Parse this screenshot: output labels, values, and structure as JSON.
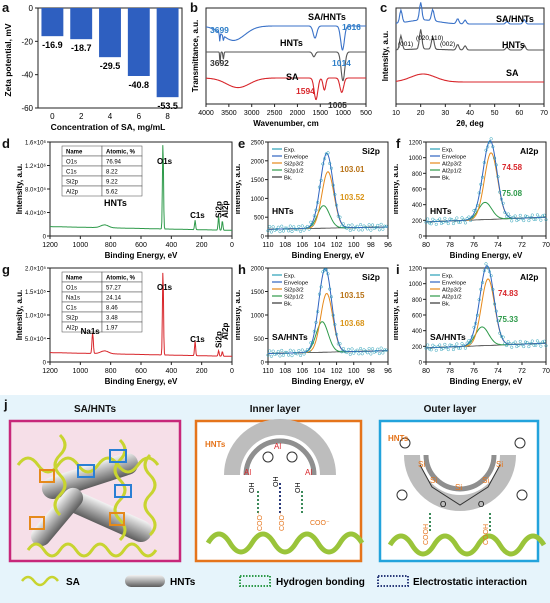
{
  "panel_letters": [
    "a",
    "b",
    "c",
    "d",
    "e",
    "f",
    "g",
    "h",
    "i",
    "j"
  ],
  "colors": {
    "blue": "#2f63c0",
    "red": "#d8262b",
    "green": "#2e9a4a",
    "gray": "#4d4d4d",
    "orange": "#e6891b",
    "magenta": "#d0307a",
    "cyan": "#17a0d6"
  },
  "chart_data": [
    {
      "id": "a",
      "type": "bar",
      "categories": [
        "0",
        "2",
        "4",
        "6",
        "8"
      ],
      "values": [
        -16.9,
        -18.7,
        -29.5,
        -40.8,
        -53.5
      ],
      "data_labels": [
        "-16.9",
        "-18.7",
        "-29.5",
        "-40.8",
        "-53.5"
      ],
      "xlabel": "Concentration of SA, mg/mL",
      "ylabel": "Zeta potential, mV",
      "ylim": [
        -60,
        0
      ],
      "yticks": [
        "0",
        "-20",
        "-40",
        "-60"
      ],
      "xticks": [
        "0",
        "2",
        "4",
        "6",
        "8"
      ],
      "color": "#2e5fc0"
    },
    {
      "id": "b",
      "type": "line",
      "xlabel": "Wavenumber, cm",
      "ylabel": "Transmittance, a.u.",
      "xlim": [
        4000,
        500
      ],
      "xticks": [
        "4000",
        "3500",
        "3000",
        "2500",
        "2000",
        "1500",
        "1000",
        "500"
      ],
      "series": [
        {
          "name": "SA/HNTs",
          "color": "#3a72c8"
        },
        {
          "name": "HNTs",
          "color": "#555555"
        },
        {
          "name": "SA",
          "color": "#d8262b"
        }
      ],
      "annotations": [
        "3699",
        "1616",
        "1014",
        "3692",
        "1594",
        "1005"
      ]
    },
    {
      "id": "c",
      "type": "line",
      "xlabel": "2θ, deg",
      "ylabel": "Intensity, a.u.",
      "xlim": [
        0,
        70
      ],
      "xticks": [
        "10",
        "20",
        "30",
        "40",
        "50",
        "60",
        "70"
      ],
      "series": [
        {
          "name": "SA/HNTs",
          "color": "#3a72c8"
        },
        {
          "name": "HNTs",
          "color": "#555555"
        },
        {
          "name": "SA",
          "color": "#d8262b"
        }
      ],
      "annotations": [
        "(001)",
        "(020,110)",
        "(002)"
      ]
    },
    {
      "id": "d",
      "type": "line",
      "xlabel": "Binding Energy, eV",
      "ylabel": "Intensity, a.u.",
      "xlim": [
        1400,
        0
      ],
      "xticks": [
        "1200",
        "1000",
        "800",
        "600",
        "400",
        "200",
        "0"
      ],
      "yticks": [
        "0",
        "4.0×10⁵",
        "8.0×10⁵",
        "1.2×10⁶",
        "1.6×10⁶"
      ],
      "series": [
        {
          "name": "HNTs",
          "color": "#2e9a4a"
        }
      ],
      "peaks": [
        "O1s",
        "C1s",
        "Si2p",
        "Al2p"
      ],
      "table": {
        "headers": [
          "Name",
          "Atomic, %"
        ],
        "rows": [
          [
            "O1s",
            "76.94"
          ],
          [
            "C1s",
            "8.22"
          ],
          [
            "Si2p",
            "9.22"
          ],
          [
            "Al2p",
            "5.62"
          ]
        ]
      }
    },
    {
      "id": "e",
      "type": "line",
      "xlabel": "Binding Energy, eV",
      "ylabel": "Intensity, a.u.",
      "xlim": [
        110,
        96
      ],
      "xticks": [
        "110",
        "108",
        "106",
        "104",
        "102",
        "100",
        "98",
        "96"
      ],
      "yticks": [
        "0",
        "500",
        "1000",
        "1500",
        "2000",
        "2500"
      ],
      "title": "Si2p",
      "sample": "HNTs",
      "legend": [
        "Exp.",
        "Envelope",
        "Si2p3/2",
        "Si2p1/2",
        "Bk."
      ],
      "annotations": [
        "103.01",
        "103.52"
      ]
    },
    {
      "id": "f",
      "type": "line",
      "xlabel": "Binding Energy, eV",
      "ylabel": "Intensity, a.u.",
      "xlim": [
        80,
        70
      ],
      "xticks": [
        "80",
        "78",
        "76",
        "74",
        "72",
        "70"
      ],
      "yticks": [
        "0",
        "200",
        "400",
        "600",
        "800",
        "1000",
        "1200"
      ],
      "title": "Al2p",
      "sample": "HNTs",
      "legend": [
        "Exp.",
        "Envelope",
        "Al2p3/2",
        "Al2p1/2",
        "Bk."
      ],
      "annotations": [
        "74.58",
        "75.08"
      ]
    },
    {
      "id": "g",
      "type": "line",
      "xlabel": "Binding Energy, eV",
      "ylabel": "Intensity, a.u.",
      "xlim": [
        1400,
        0
      ],
      "xticks": [
        "1200",
        "1000",
        "800",
        "600",
        "400",
        "200",
        "0"
      ],
      "yticks": [
        "0",
        "5.0×10⁴",
        "1.0×10⁵",
        "1.5×10⁵",
        "2.0×10⁵"
      ],
      "series": [
        {
          "name": "SA/HNTs",
          "color": "#d8262b"
        }
      ],
      "peaks": [
        "Na1s",
        "O1s",
        "C1s",
        "Si2p",
        "Al2p"
      ],
      "table": {
        "headers": [
          "Name",
          "Atomic, %"
        ],
        "rows": [
          [
            "O1s",
            "57.27"
          ],
          [
            "Na1s",
            "24.14"
          ],
          [
            "C1s",
            "8.46"
          ],
          [
            "Si2p",
            "3.48"
          ],
          [
            "Al2p",
            "1.97"
          ]
        ]
      }
    },
    {
      "id": "h",
      "type": "line",
      "xlabel": "Binding Energy, eV",
      "ylabel": "Intensity, a.u.",
      "xlim": [
        110,
        96
      ],
      "xticks": [
        "110",
        "108",
        "106",
        "104",
        "102",
        "100",
        "98",
        "96"
      ],
      "yticks": [
        "0",
        "500",
        "1000",
        "1500",
        "2000"
      ],
      "title": "Si2p",
      "sample": "SA/HNTs",
      "legend": [
        "Exp.",
        "Envelope",
        "Si2p3/2",
        "Si2p1/2",
        "Bk."
      ],
      "annotations": [
        "103.15",
        "103.68"
      ]
    },
    {
      "id": "i",
      "type": "line",
      "xlabel": "Binding Energy, eV",
      "ylabel": "Intensity, a.u.",
      "xlim": [
        80,
        70
      ],
      "xticks": [
        "80",
        "78",
        "76",
        "74",
        "72",
        "70"
      ],
      "yticks": [
        "0",
        "200",
        "400",
        "600",
        "800",
        "1000",
        "1200"
      ],
      "title": "Al2p",
      "sample": "SA/HNTs",
      "legend": [
        "Exp.",
        "Envelope",
        "Al2p3/2",
        "Al2p1/2",
        "Bk."
      ],
      "annotations": [
        "74.83",
        "75.33"
      ]
    }
  ],
  "schematic": {
    "titles": [
      "SA/HNTs",
      "Inner layer",
      "Outer layer"
    ],
    "inner_labels": [
      "HNTs",
      "Al",
      "Al",
      "Al",
      "OH",
      "OH",
      "OH",
      "COO⁻",
      "COO⁻",
      "COO⁻"
    ],
    "outer_labels": [
      "HNTs",
      "Si",
      "Si",
      "Si",
      "Si",
      "Si",
      "O",
      "O",
      "COOH",
      "COOH"
    ],
    "legend": [
      "SA",
      "HNTs",
      "Hydrogen bonding",
      "Electrostatic interaction"
    ]
  }
}
